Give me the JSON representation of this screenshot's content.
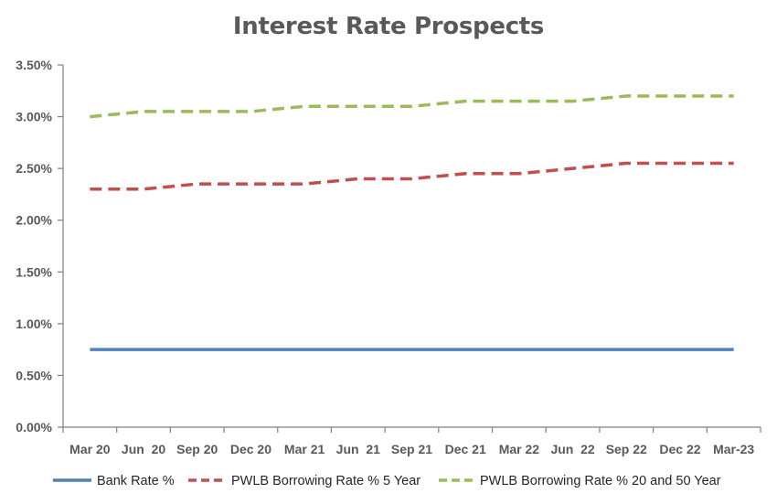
{
  "chart_data": {
    "type": "line",
    "title": "Interest Rate Prospects",
    "xlabel": "",
    "ylabel": "",
    "categories": [
      "Mar 20",
      "Jun  20",
      "Sep 20",
      "Dec 20",
      "Mar 21",
      "Jun  21",
      "Sep 21",
      "Dec 21",
      "Mar 22",
      "Jun  22",
      "Sep 22",
      "Dec 22",
      "Mar-23"
    ],
    "y_ticks": [
      "0.00%",
      "0.50%",
      "1.00%",
      "1.50%",
      "2.00%",
      "2.50%",
      "3.00%",
      "3.50%"
    ],
    "ylim": [
      0,
      3.5
    ],
    "grid": false,
    "legend_position": "bottom",
    "series": [
      {
        "name": "Bank Rate %",
        "color": "#4f81bd",
        "dash": "solid",
        "values": [
          0.75,
          0.75,
          0.75,
          0.75,
          0.75,
          0.75,
          0.75,
          0.75,
          0.75,
          0.75,
          0.75,
          0.75,
          0.75
        ]
      },
      {
        "name": "PWLB Borrowing Rate % 5 Year",
        "color": "#c0504d",
        "dash": "dashed",
        "values": [
          2.3,
          2.3,
          2.35,
          2.35,
          2.35,
          2.4,
          2.4,
          2.45,
          2.45,
          2.5,
          2.55,
          2.55,
          2.55
        ]
      },
      {
        "name": "PWLB Borrowing Rate % 20 and 50 Year",
        "color": "#9bbb59",
        "dash": "dashed",
        "values": [
          3.0,
          3.05,
          3.05,
          3.05,
          3.1,
          3.1,
          3.1,
          3.15,
          3.15,
          3.15,
          3.2,
          3.2,
          3.2
        ]
      }
    ]
  }
}
